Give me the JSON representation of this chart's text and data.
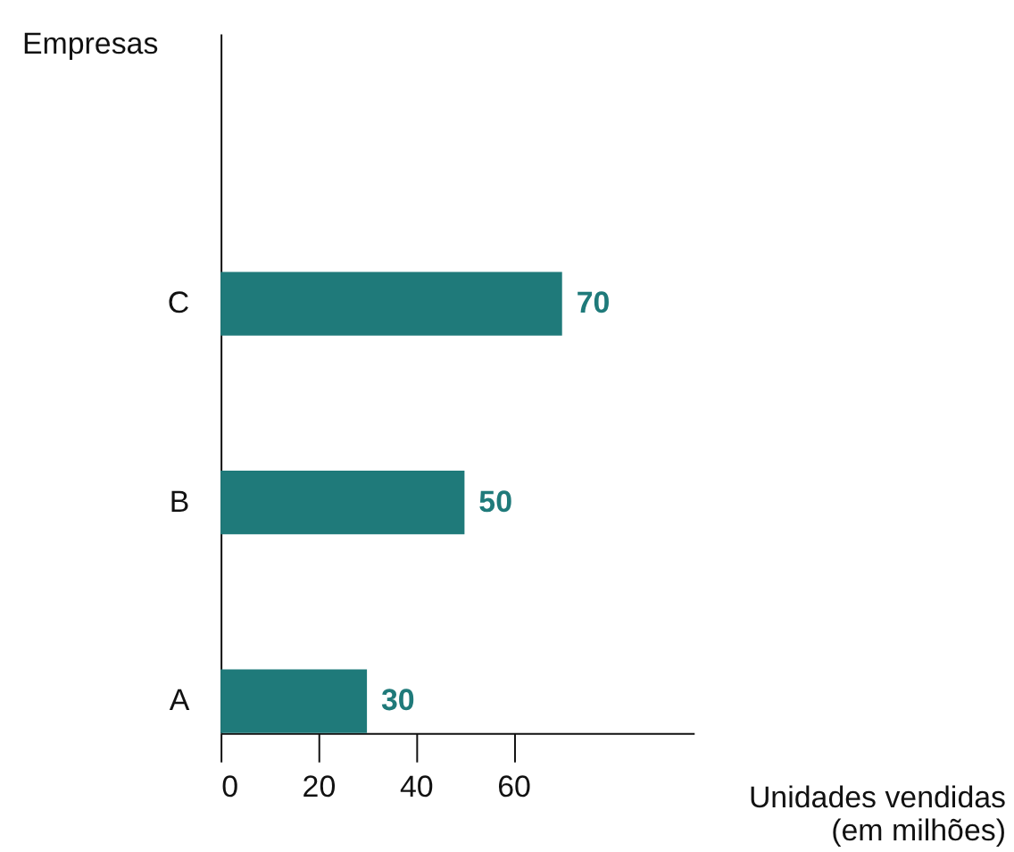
{
  "chart_data": {
    "type": "bar",
    "orientation": "horizontal",
    "categories": [
      "C",
      "B",
      "A"
    ],
    "values": [
      70,
      50,
      30
    ],
    "color": "#1f7a7a",
    "xlim": [
      0,
      97
    ],
    "xticks": [
      0,
      20,
      40,
      60
    ],
    "xlabel": "Unidades vendidas\n(em milhões)",
    "ylabel": "Empresas",
    "data_labels": true,
    "grid": false
  }
}
